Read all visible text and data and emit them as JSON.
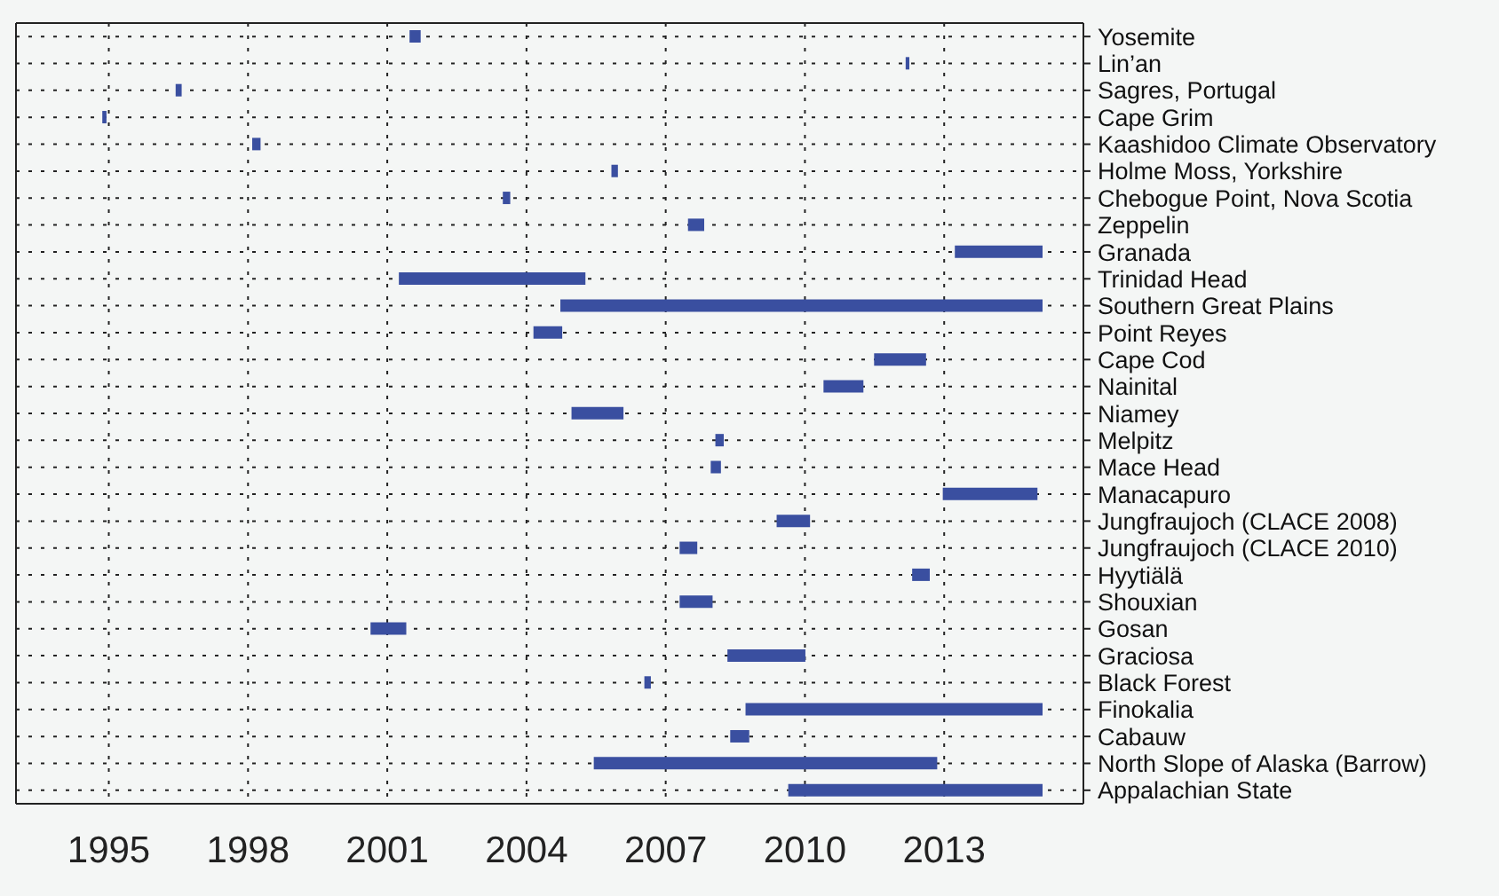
{
  "chart_data": {
    "type": "bar",
    "orientation": "horizontal",
    "categories": [
      "Yosemite",
      "Lin’an",
      "Sagres, Portugal",
      "Cape Grim",
      "Kaashidoo Climate Observatory",
      "Holme Moss, Yorkshire",
      "Chebogue Point, Nova Scotia",
      "Zeppelin",
      "Granada",
      "Trinidad Head",
      "Southern Great Plains",
      "Point Reyes",
      "Cape Cod",
      "Nainital",
      "Niamey",
      "Melpitz",
      "Mace Head",
      "Manacapuro",
      "Jungfraujoch (CLACE 2008)",
      "Jungfraujoch (CLACE 2010)",
      "Hyytiälä",
      "Shouxian",
      "Gosan",
      "Graciosa",
      "Black Forest",
      "Finokalia",
      "Cabauw",
      "North Slope of Alaska (Barrow)",
      "Appalachian State"
    ],
    "base": [
      2001.48,
      2012.17,
      1996.44,
      1994.86,
      1998.09,
      2005.83,
      2003.49,
      2007.48,
      2013.23,
      2001.25,
      2004.73,
      2004.15,
      2011.49,
      2010.4,
      2004.97,
      2008.07,
      2007.97,
      2012.97,
      2009.39,
      2007.3,
      2012.31,
      2007.3,
      2000.64,
      2008.33,
      2006.54,
      2008.72,
      2008.39,
      2005.45,
      2009.64
    ],
    "values": [
      0.24,
      0.08,
      0.13,
      0.09,
      0.18,
      0.14,
      0.16,
      0.35,
      1.89,
      4.02,
      10.39,
      0.62,
      1.12,
      0.86,
      1.12,
      0.18,
      0.22,
      2.04,
      0.72,
      0.38,
      0.38,
      0.71,
      0.77,
      1.68,
      0.14,
      6.4,
      0.41,
      7.4,
      5.48
    ],
    "color": "#3a4fa0",
    "xlim": [
      1993,
      2016
    ],
    "xticks": [
      1995,
      1998,
      2001,
      2004,
      2007,
      2010,
      2013
    ],
    "grid": true
  }
}
